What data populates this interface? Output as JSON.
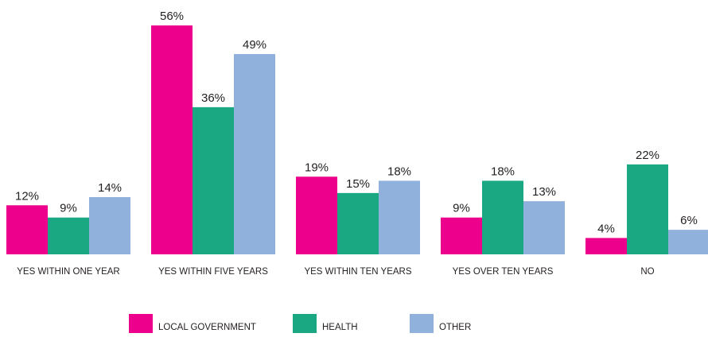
{
  "chart_data": {
    "type": "bar",
    "categories": [
      "YES WITHIN ONE YEAR",
      "YES WITHIN FIVE YEARS",
      "YES WITHIN TEN YEARS",
      "YES OVER TEN YEARS",
      "NO"
    ],
    "series": [
      {
        "name": "LOCAL GOVERNMENT",
        "values": [
          12,
          56,
          19,
          9,
          4
        ],
        "labels": [
          "12%",
          "56%",
          "19%",
          "9%",
          "4%"
        ],
        "color": "#ec008c"
      },
      {
        "name": "HEALTH",
        "values": [
          9,
          36,
          15,
          18,
          22
        ],
        "labels": [
          "9%",
          "36%",
          "15%",
          "18%",
          "22%"
        ],
        "color": "#19a881"
      },
      {
        "name": "OTHER",
        "values": [
          14,
          49,
          18,
          13,
          6
        ],
        "labels": [
          "14%",
          "49%",
          "18%",
          "13%",
          "6%"
        ],
        "color": "#8fb1dc"
      }
    ],
    "ylim": [
      0,
      56
    ],
    "grid": false,
    "legend_position": "bottom-center"
  }
}
